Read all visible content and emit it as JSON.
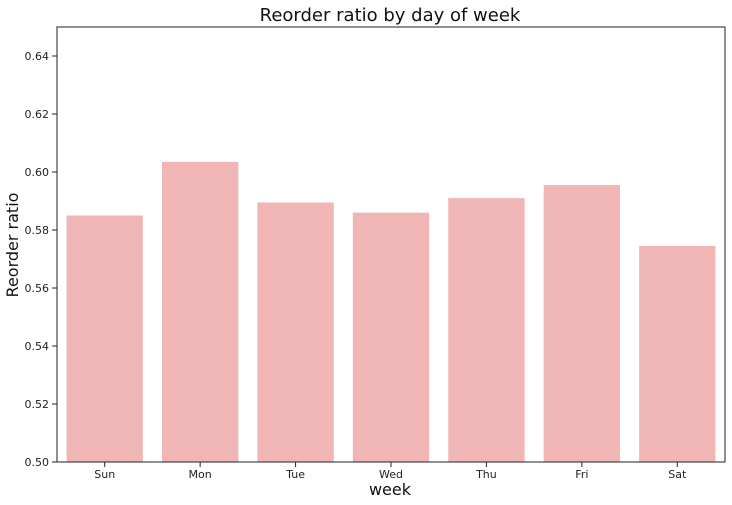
{
  "chart_data": {
    "type": "bar",
    "title": "Reorder ratio by day of week",
    "xlabel": "week",
    "ylabel": "Reorder ratio",
    "categories": [
      "Sun",
      "Mon",
      "Tue",
      "Wed",
      "Thu",
      "Fri",
      "Sat"
    ],
    "values": [
      0.585,
      0.6035,
      0.5895,
      0.586,
      0.591,
      0.5955,
      0.5745
    ],
    "ylim": [
      0.5,
      0.65
    ],
    "yticks": [
      "0.50",
      "0.52",
      "0.54",
      "0.56",
      "0.58",
      "0.60",
      "0.62",
      "0.64"
    ],
    "bar_color": "#F0B6B6",
    "grid": false,
    "legend": "none"
  }
}
